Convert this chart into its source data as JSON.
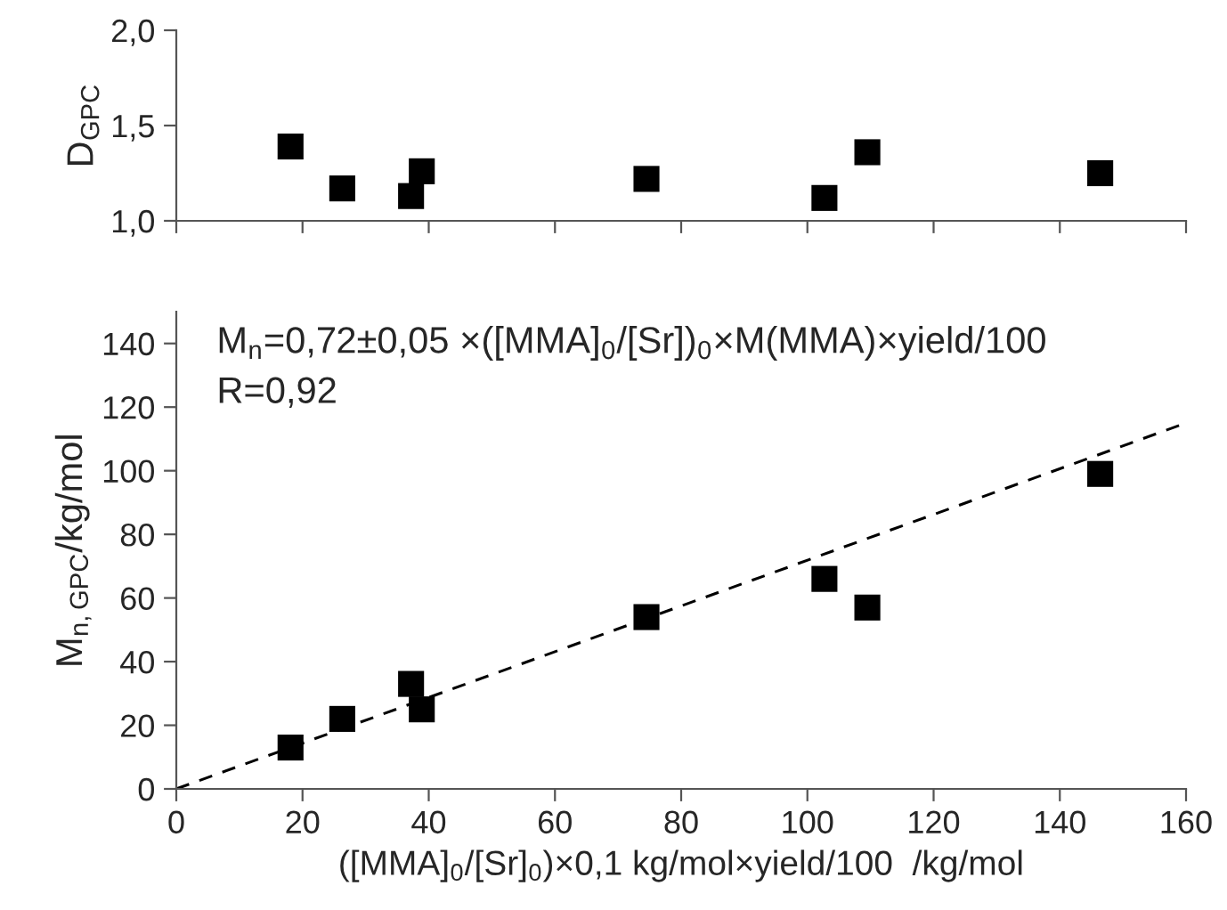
{
  "chart_data": [
    {
      "type": "scatter",
      "ylabel": "D$_{GPC}$",
      "x": [
        18.1,
        26.3,
        37.2,
        38.9,
        74.5,
        102.7,
        109.5,
        146.4
      ],
      "series": [
        {
          "color": "#000000",
          "values": [
            1.39,
            1.17,
            1.13,
            1.26,
            1.22,
            1.12,
            1.36,
            1.25
          ]
        }
      ],
      "xlim": [
        0,
        160
      ],
      "xticks": [
        0,
        20,
        40,
        60,
        80,
        100,
        120,
        140,
        160
      ],
      "ylim": [
        1,
        2
      ],
      "yticks": [
        {
          "value": 1,
          "label": "1,0"
        },
        {
          "value": 1.5,
          "label": "1,5"
        },
        {
          "value": 2,
          "label": "2,0"
        }
      ],
      "tick_labels": "y",
      "marker": "square",
      "grid": false,
      "legend": false
    },
    {
      "type": "scatter",
      "xlabel": "([MMA]$_{0}$/[Sr]$_{0}$)×0,1 kg/mol×yield/100  /kg/mol",
      "ylabel": "M$_{n,GPC}$/kg/mol",
      "x": [
        18.1,
        26.3,
        37.2,
        38.9,
        74.5,
        102.7,
        109.5,
        146.4
      ],
      "series": [
        {
          "color": "#000000",
          "values": [
            13,
            22,
            33,
            25,
            54,
            66,
            57,
            99
          ]
        },
        {
          "type": "line",
          "color": "#000000",
          "x": [
            0,
            160
          ],
          "values": [
            0,
            115
          ],
          "line_style": "dashed",
          "marker": "none"
        }
      ],
      "xlim": [
        0,
        160
      ],
      "xticks": [
        0,
        20,
        40,
        60,
        80,
        100,
        120,
        140,
        160
      ],
      "ylim": [
        0,
        150
      ],
      "yticks": [
        0,
        20,
        40,
        60,
        80,
        100,
        120,
        140
      ],
      "annotations": [
        "M$_{n}$=0,72±0,05 ×([MMA]$_{0}$/[Sr])$_{0}$×M(MMA)×yield/100",
        "R=0,92"
      ],
      "marker": "square",
      "grid": false,
      "legend": false
    }
  ]
}
